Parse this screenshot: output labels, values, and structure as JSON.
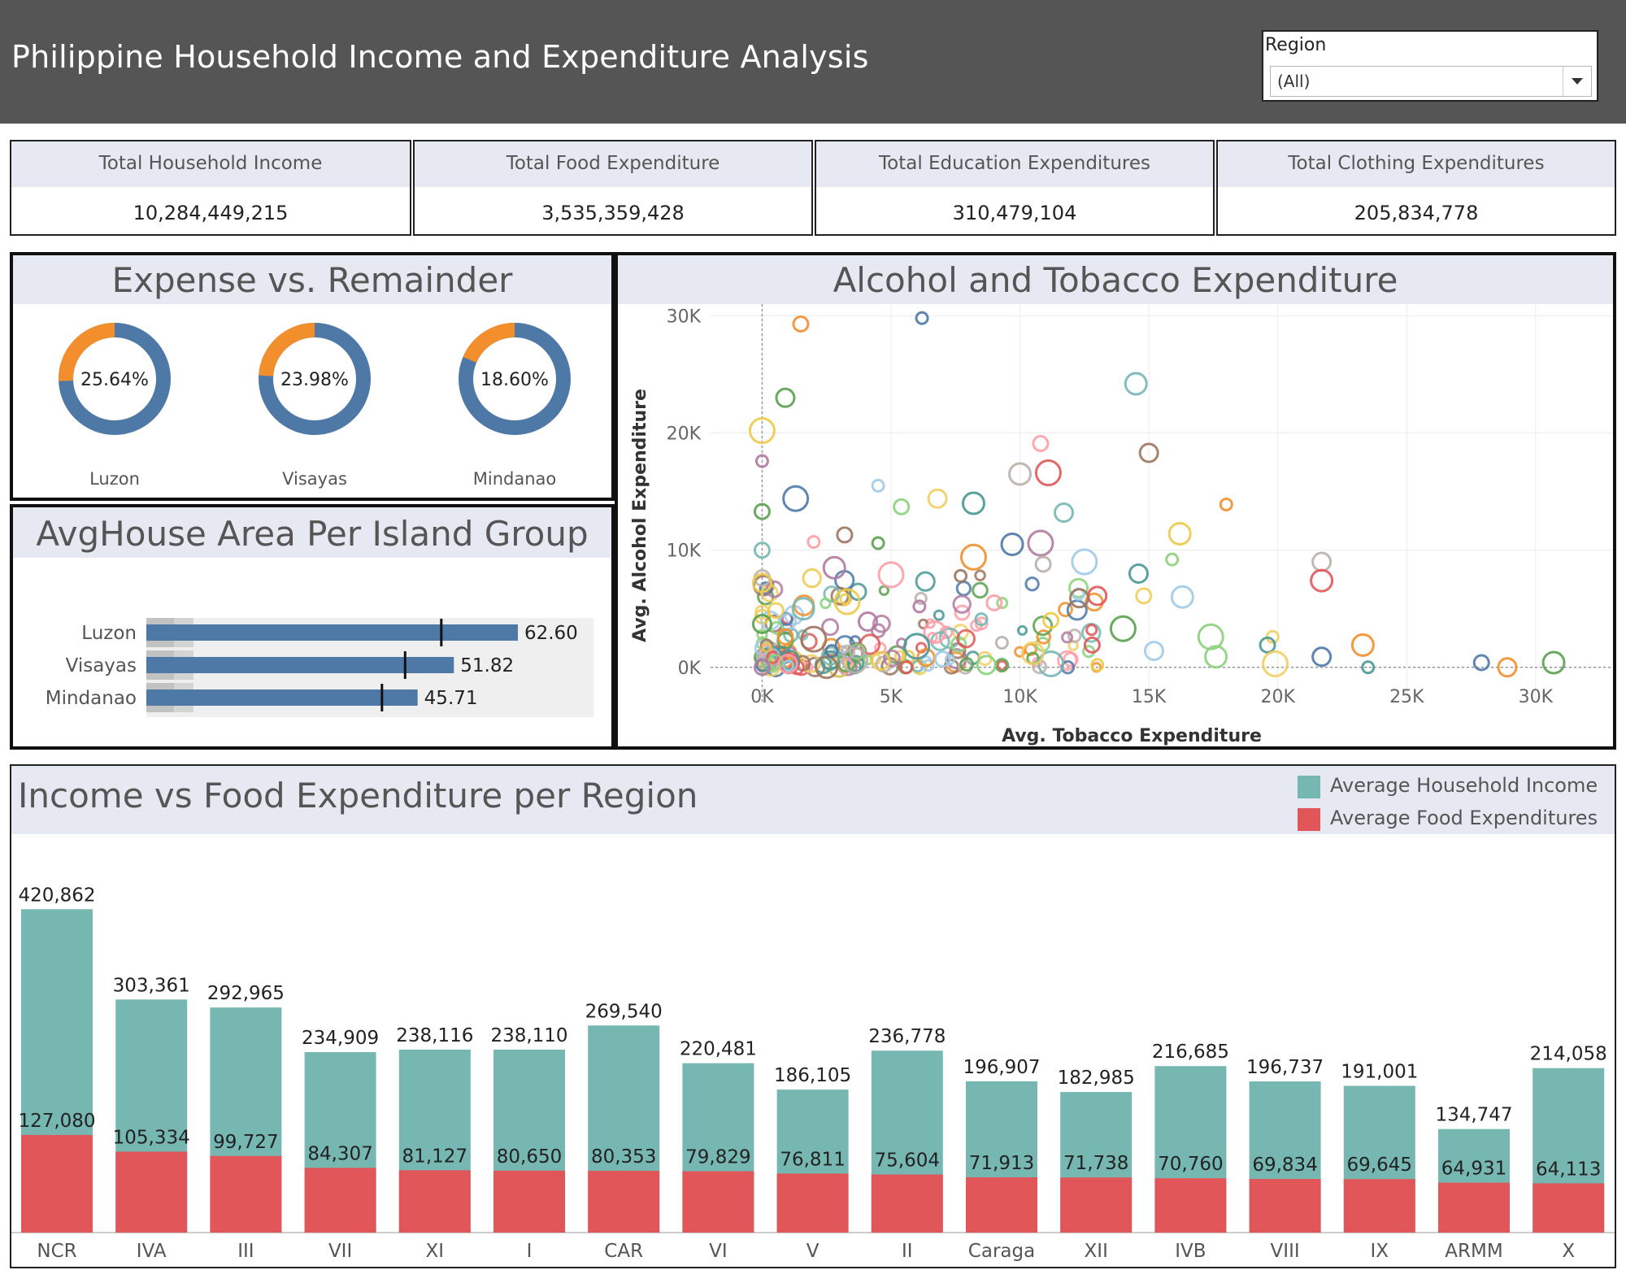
{
  "header": {
    "title": "Philippine Household Income and Expenditure Analysis",
    "filter_label": "Region",
    "filter_value": "(All)"
  },
  "kpis": [
    {
      "label": "Total Household Income",
      "value": "10,284,449,215"
    },
    {
      "label": "Total Food Expenditure",
      "value": "3,535,359,428"
    },
    {
      "label": "Total Education Expenditures",
      "value": "310,479,104"
    },
    {
      "label": "Total Clothing Expenditures",
      "value": "205,834,778"
    }
  ],
  "colors": {
    "header_bg": "#555555",
    "panel_header_bg": "#e6e9f1",
    "donut_expense": "#f28e2b",
    "donut_remainder": "#4e79a7",
    "bullet_bar": "#4e79a7",
    "income_bar": "#76b7b2",
    "food_bar": "#e15759"
  },
  "chart_data": [
    {
      "type": "pie",
      "title": "Expense vs. Remainder",
      "slices": [
        {
          "group": "Luzon",
          "expense_pct": 25.64,
          "label": "25.64%"
        },
        {
          "group": "Visayas",
          "expense_pct": 23.98,
          "label": "23.98%"
        },
        {
          "group": "Mindanao",
          "expense_pct": 18.6,
          "label": "18.60%"
        }
      ]
    },
    {
      "type": "bar",
      "title": "AvgHouse Area Per Island Group",
      "categories": [
        "Luzon",
        "Visayas",
        "Mindanao"
      ],
      "values": [
        62.6,
        51.82,
        45.71
      ],
      "value_labels": [
        "62.60",
        "51.82",
        "45.71"
      ],
      "reference_values": [
        49.7,
        43.6,
        39.7
      ],
      "xlim": [
        0,
        90
      ]
    },
    {
      "type": "scatter",
      "title": "Alcohol and Tobacco Expenditure",
      "xlabel": "Avg. Tobacco Expenditure",
      "ylabel": "Avg. Alcohol Expenditure",
      "xlim": [
        -2000,
        33000
      ],
      "ylim": [
        -3000,
        31000
      ],
      "x_ticks": [
        "0K",
        "5K",
        "10K",
        "15K",
        "20K",
        "25K",
        "30K"
      ],
      "y_ticks": [
        "0K",
        "10K",
        "20K",
        "30K"
      ],
      "points": [
        {
          "x": 6200,
          "y": 29800
        },
        {
          "x": 1500,
          "y": 29300
        },
        {
          "x": 900,
          "y": 23000
        },
        {
          "x": 14500,
          "y": 24200
        },
        {
          "x": 0,
          "y": 20200
        },
        {
          "x": 0,
          "y": 17600
        },
        {
          "x": 10800,
          "y": 19100
        },
        {
          "x": 15000,
          "y": 18300
        },
        {
          "x": 10000,
          "y": 16500
        },
        {
          "x": 11100,
          "y": 16600
        },
        {
          "x": 4500,
          "y": 15500
        },
        {
          "x": 5400,
          "y": 13700
        },
        {
          "x": 6800,
          "y": 14400
        },
        {
          "x": 8200,
          "y": 14000
        },
        {
          "x": 1300,
          "y": 14400
        },
        {
          "x": 18000,
          "y": 13900
        },
        {
          "x": 0,
          "y": 13300
        },
        {
          "x": 11700,
          "y": 13200
        },
        {
          "x": 16200,
          "y": 11400
        },
        {
          "x": 10800,
          "y": 10600
        },
        {
          "x": 2000,
          "y": 10700
        },
        {
          "x": 3200,
          "y": 11300
        },
        {
          "x": 21700,
          "y": 9000
        },
        {
          "x": 21700,
          "y": 7400
        },
        {
          "x": 12500,
          "y": 9000
        },
        {
          "x": 15900,
          "y": 9200
        },
        {
          "x": 14800,
          "y": 6100
        },
        {
          "x": 14600,
          "y": 8000
        },
        {
          "x": 9700,
          "y": 10500
        },
        {
          "x": 8200,
          "y": 9400
        },
        {
          "x": 4500,
          "y": 10600
        },
        {
          "x": 0,
          "y": 10000
        },
        {
          "x": 0,
          "y": 7200
        },
        {
          "x": 2800,
          "y": 8500
        },
        {
          "x": 5000,
          "y": 7900
        },
        {
          "x": 7700,
          "y": 7800
        },
        {
          "x": 10900,
          "y": 8800
        },
        {
          "x": 13000,
          "y": 6100
        },
        {
          "x": 16300,
          "y": 6000
        },
        {
          "x": 17400,
          "y": 2600
        },
        {
          "x": 19800,
          "y": 2600
        },
        {
          "x": 19600,
          "y": 1900
        },
        {
          "x": 21700,
          "y": 900
        },
        {
          "x": 23300,
          "y": 1900
        },
        {
          "x": 14000,
          "y": 3300
        },
        {
          "x": 8500,
          "y": 4100
        },
        {
          "x": 11200,
          "y": 4000
        },
        {
          "x": 4100,
          "y": 3900
        },
        {
          "x": 6700,
          "y": 3000
        },
        {
          "x": 2000,
          "y": 2400
        },
        {
          "x": 9300,
          "y": 2100
        },
        {
          "x": 12800,
          "y": 1900
        },
        {
          "x": 15200,
          "y": 1400
        },
        {
          "x": 17600,
          "y": 900
        },
        {
          "x": 19900,
          "y": 300
        },
        {
          "x": 23500,
          "y": 0
        },
        {
          "x": 27900,
          "y": 400
        },
        {
          "x": 28900,
          "y": 0
        },
        {
          "x": 30700,
          "y": 400
        },
        {
          "x": 11200,
          "y": 300
        },
        {
          "x": 13000,
          "y": 200
        },
        {
          "x": 0,
          "y": 0
        },
        {
          "x": 1000,
          "y": 300
        },
        {
          "x": 2500,
          "y": 0
        },
        {
          "x": 3600,
          "y": 600
        },
        {
          "x": 5600,
          "y": 0
        },
        {
          "x": 7000,
          "y": 700
        },
        {
          "x": 8700,
          "y": 200
        },
        {
          "x": 10500,
          "y": 1200
        },
        {
          "x": 6000,
          "y": 1800
        },
        {
          "x": 2700,
          "y": 1400
        },
        {
          "x": 900,
          "y": 2600
        },
        {
          "x": 0,
          "y": 3700
        },
        {
          "x": 1600,
          "y": 5000
        },
        {
          "x": 3300,
          "y": 5600
        },
        {
          "x": 6100,
          "y": 5200
        },
        {
          "x": 9000,
          "y": 5500
        },
        {
          "x": 12300,
          "y": 5900
        }
      ]
    },
    {
      "type": "bar",
      "title": "Income vs Food Expenditure per Region",
      "categories": [
        "NCR",
        "IVA",
        "III",
        "VII",
        "XI",
        "I",
        "CAR",
        "VI",
        "V",
        "II",
        "Caraga",
        "XII",
        "IVB",
        "VIII",
        "IX",
        "ARMM",
        "X"
      ],
      "series": [
        {
          "name": "Average Household Income",
          "values": [
            420862,
            303361,
            292965,
            234909,
            238116,
            238110,
            269540,
            220481,
            186105,
            236778,
            196907,
            182985,
            216685,
            196737,
            191001,
            134747,
            214058
          ]
        },
        {
          "name": "Average Food Expenditures",
          "values": [
            127080,
            105334,
            99727,
            84307,
            81127,
            80650,
            80353,
            79829,
            76811,
            75604,
            71913,
            71738,
            70760,
            69834,
            69645,
            64931,
            64113
          ]
        }
      ],
      "income_labels": [
        "420,862",
        "303,361",
        "292,965",
        "234,909",
        "238,116",
        "238,110",
        "269,540",
        "220,481",
        "186,105",
        "236,778",
        "196,907",
        "182,985",
        "216,685",
        "196,737",
        "191,001",
        "134,747",
        "214,058"
      ],
      "food_labels": [
        "127,080",
        "105,334",
        "99,727",
        "84,307",
        "81,127",
        "80,650",
        "80,353",
        "79,829",
        "76,811",
        "75,604",
        "71,913",
        "71,738",
        "70,760",
        "69,834",
        "69,645",
        "64,931",
        "64,113"
      ],
      "ylim": [
        0,
        440000
      ]
    }
  ]
}
